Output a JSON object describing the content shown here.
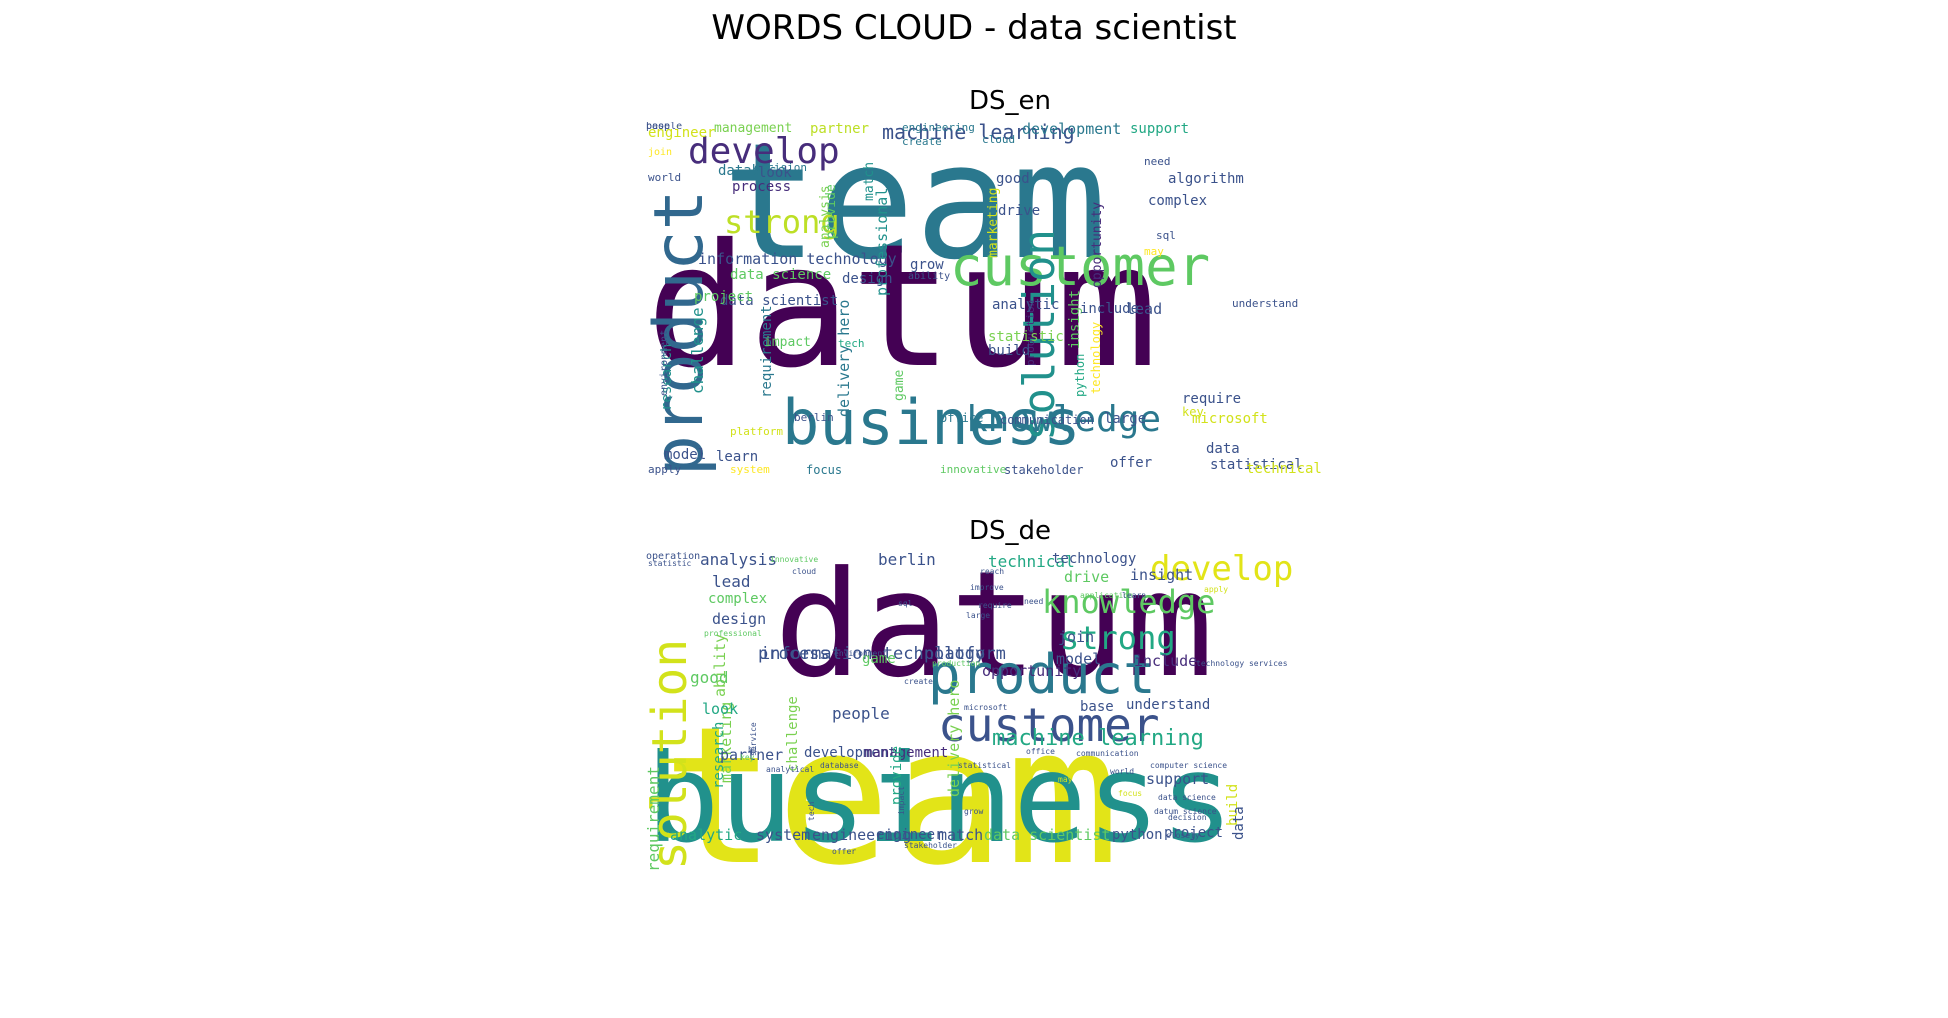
{
  "title": "WORDS CLOUD - data scientist",
  "colormap": [
    "#440154",
    "#3b528b",
    "#21918c",
    "#5ec962",
    "#fde725"
  ],
  "clouds": [
    {
      "id": "en",
      "title": "DS_en",
      "words": [
        {
          "text": "team",
          "color": "#2a788e"
        },
        {
          "text": "datum",
          "color": "#440154"
        },
        {
          "text": "business",
          "color": "#2a788e"
        },
        {
          "text": "customer",
          "color": "#5ec962"
        },
        {
          "text": "product",
          "color": "#31688e"
        },
        {
          "text": "solution",
          "color": "#21918c"
        },
        {
          "text": "knowledge",
          "color": "#2a788e"
        },
        {
          "text": "develop",
          "color": "#472d7b"
        },
        {
          "text": "strong",
          "color": "#bddf26"
        },
        {
          "text": "machine learning",
          "color": "#3b528b"
        },
        {
          "text": "information technology",
          "color": "#3b528b"
        },
        {
          "text": "professional",
          "color": "#21918c"
        },
        {
          "text": "data scientist",
          "color": "#3b528b"
        },
        {
          "text": "challenge",
          "color": "#21918c"
        },
        {
          "text": "requirement",
          "color": "#2a788e"
        },
        {
          "text": "delivery hero",
          "color": "#2a788e"
        },
        {
          "text": "research",
          "color": "#21918c"
        },
        {
          "text": "opportunity",
          "color": "#472d7b"
        },
        {
          "text": "technology",
          "color": "#fde725"
        },
        {
          "text": "marketing",
          "color": "#d2e21b"
        },
        {
          "text": "analysis",
          "color": "#7ad151"
        },
        {
          "text": "provide",
          "color": "#5ec962"
        },
        {
          "text": "match",
          "color": "#21918c"
        },
        {
          "text": "insight",
          "color": "#5ec962"
        },
        {
          "text": "production",
          "color": "#472d7b"
        },
        {
          "text": "environment",
          "color": "#3b528b"
        },
        {
          "text": "development",
          "color": "#2a788e"
        },
        {
          "text": "support",
          "color": "#22a884"
        },
        {
          "text": "management",
          "color": "#7ad151"
        },
        {
          "text": "partner",
          "color": "#bddf26"
        },
        {
          "text": "engineer",
          "color": "#d2e21b"
        },
        {
          "text": "join",
          "color": "#fde725"
        },
        {
          "text": "world",
          "color": "#3b528b"
        },
        {
          "text": "decision",
          "color": "#2a788e"
        },
        {
          "text": "database",
          "color": "#2a788e"
        },
        {
          "text": "look",
          "color": "#3b528b"
        },
        {
          "text": "process",
          "color": "#472d7b"
        },
        {
          "text": "engineering",
          "color": "#2a788e"
        },
        {
          "text": "create",
          "color": "#2a788e"
        },
        {
          "text": "cloud",
          "color": "#2a788e"
        },
        {
          "text": "need",
          "color": "#3b528b"
        },
        {
          "text": "algorithm",
          "color": "#3b528b"
        },
        {
          "text": "good",
          "color": "#3b528b"
        },
        {
          "text": "drive",
          "color": "#3b528b"
        },
        {
          "text": "complex",
          "color": "#3b528b"
        },
        {
          "text": "sql",
          "color": "#3b528b"
        },
        {
          "text": "may",
          "color": "#fde725"
        },
        {
          "text": "grow",
          "color": "#3b528b"
        },
        {
          "text": "ability",
          "color": "#3b528b"
        },
        {
          "text": "data science",
          "color": "#5ec962"
        },
        {
          "text": "design",
          "color": "#3b528b"
        },
        {
          "text": "project",
          "color": "#5ec962"
        },
        {
          "text": "analytic",
          "color": "#3b528b"
        },
        {
          "text": "include",
          "color": "#3b528b"
        },
        {
          "text": "lead",
          "color": "#3b528b"
        },
        {
          "text": "understand",
          "color": "#3b528b"
        },
        {
          "text": "impact",
          "color": "#5ec962"
        },
        {
          "text": "tech",
          "color": "#22a884"
        },
        {
          "text": "statistic",
          "color": "#7ad151"
        },
        {
          "text": "build",
          "color": "#3b528b"
        },
        {
          "text": "python",
          "color": "#22a884"
        },
        {
          "text": "game",
          "color": "#5ec962"
        },
        {
          "text": "require",
          "color": "#3b528b"
        },
        {
          "text": "key",
          "color": "#d2e21b"
        },
        {
          "text": "berlin",
          "color": "#3b528b"
        },
        {
          "text": "office",
          "color": "#2a788e"
        },
        {
          "text": "communication",
          "color": "#3b528b"
        },
        {
          "text": "large",
          "color": "#3b528b"
        },
        {
          "text": "microsoft",
          "color": "#d2e21b"
        },
        {
          "text": "platform",
          "color": "#d2e21b"
        },
        {
          "text": "model",
          "color": "#3b528b"
        },
        {
          "text": "learn",
          "color": "#3b528b"
        },
        {
          "text": "data",
          "color": "#3b528b"
        },
        {
          "text": "apply",
          "color": "#3b528b"
        },
        {
          "text": "system",
          "color": "#fde725"
        },
        {
          "text": "focus",
          "color": "#2a788e"
        },
        {
          "text": "innovative",
          "color": "#5ec962"
        },
        {
          "text": "stakeholder",
          "color": "#3b528b"
        },
        {
          "text": "offer",
          "color": "#3b528b"
        },
        {
          "text": "statistical",
          "color": "#3b528b"
        },
        {
          "text": "technical",
          "color": "#d2e21b"
        },
        {
          "text": "base",
          "color": "#3b528b"
        },
        {
          "text": "people",
          "color": "#3b528b"
        }
      ]
    },
    {
      "id": "de",
      "title": "DS_de",
      "words": [
        {
          "text": "team",
          "color": "#e2e418"
        },
        {
          "text": "datum",
          "color": "#440154"
        },
        {
          "text": "business",
          "color": "#21918c"
        },
        {
          "text": "product",
          "color": "#2a788e"
        },
        {
          "text": "customer",
          "color": "#3b528b"
        },
        {
          "text": "solution",
          "color": "#d2e21b"
        },
        {
          "text": "develop",
          "color": "#e2e418"
        },
        {
          "text": "knowledge",
          "color": "#5ec962"
        },
        {
          "text": "strong",
          "color": "#22a884"
        },
        {
          "text": "machine learning",
          "color": "#22a884"
        },
        {
          "text": "information technology",
          "color": "#3b528b"
        },
        {
          "text": "process",
          "color": "#3b528b"
        },
        {
          "text": "platform",
          "color": "#3b528b"
        },
        {
          "text": "analysis",
          "color": "#3b528b"
        },
        {
          "text": "lead",
          "color": "#3b528b"
        },
        {
          "text": "complex",
          "color": "#5ec962"
        },
        {
          "text": "design",
          "color": "#3b528b"
        },
        {
          "text": "berlin",
          "color": "#3b528b"
        },
        {
          "text": "technical",
          "color": "#22a884"
        },
        {
          "text": "technology",
          "color": "#3b528b"
        },
        {
          "text": "drive",
          "color": "#5ec962"
        },
        {
          "text": "insight",
          "color": "#3b528b"
        },
        {
          "text": "ability",
          "color": "#7ad151"
        },
        {
          "text": "join",
          "color": "#3b528b"
        },
        {
          "text": "model",
          "color": "#3b528b"
        },
        {
          "text": "include",
          "color": "#472d7b"
        },
        {
          "text": "opportunity",
          "color": "#472d7b"
        },
        {
          "text": "game",
          "color": "#5ec962"
        },
        {
          "text": "good",
          "color": "#5ec962"
        },
        {
          "text": "challenge",
          "color": "#7ad151"
        },
        {
          "text": "marketing",
          "color": "#7ad151"
        },
        {
          "text": "research",
          "color": "#22a884"
        },
        {
          "text": "requirement",
          "color": "#5ec962"
        },
        {
          "text": "look",
          "color": "#22a884"
        },
        {
          "text": "people",
          "color": "#3b528b"
        },
        {
          "text": "base",
          "color": "#3b528b"
        },
        {
          "text": "understand",
          "color": "#3b528b"
        },
        {
          "text": "partner",
          "color": "#3b528b"
        },
        {
          "text": "development",
          "color": "#3b528b"
        },
        {
          "text": "management",
          "color": "#472d7b"
        },
        {
          "text": "delivery hero",
          "color": "#7ad151"
        },
        {
          "text": "provide",
          "color": "#22a884"
        },
        {
          "text": "support",
          "color": "#3b528b"
        },
        {
          "text": "build",
          "color": "#d2e21b"
        },
        {
          "text": "data",
          "color": "#3b528b"
        },
        {
          "text": "analytic",
          "color": "#22a884"
        },
        {
          "text": "system",
          "color": "#3b528b"
        },
        {
          "text": "engineering",
          "color": "#3b528b"
        },
        {
          "text": "engineer",
          "color": "#3b528b"
        },
        {
          "text": "match",
          "color": "#3b528b"
        },
        {
          "text": "data scientist",
          "color": "#5ec962"
        },
        {
          "text": "python",
          "color": "#3b528b"
        },
        {
          "text": "project",
          "color": "#3b528b"
        },
        {
          "text": "statistic",
          "color": "#3b528b"
        },
        {
          "text": "innovative",
          "color": "#5ec962"
        },
        {
          "text": "cloud",
          "color": "#3b528b"
        },
        {
          "text": "reach",
          "color": "#3b528b"
        },
        {
          "text": "improve",
          "color": "#3b528b"
        },
        {
          "text": "sql",
          "color": "#3b528b"
        },
        {
          "text": "require",
          "color": "#3b528b"
        },
        {
          "text": "large",
          "color": "#3b528b"
        },
        {
          "text": "need",
          "color": "#3b528b"
        },
        {
          "text": "application",
          "color": "#5ec962"
        },
        {
          "text": "learn",
          "color": "#3b528b"
        },
        {
          "text": "apply",
          "color": "#d2e21b"
        },
        {
          "text": "professional",
          "color": "#5ec962"
        },
        {
          "text": "environment",
          "color": "#3b528b"
        },
        {
          "text": "production",
          "color": "#5ec962"
        },
        {
          "text": "create",
          "color": "#3b528b"
        },
        {
          "text": "microsoft",
          "color": "#3b528b"
        },
        {
          "text": "office",
          "color": "#3b528b"
        },
        {
          "text": "communication",
          "color": "#3b528b"
        },
        {
          "text": "analytical",
          "color": "#3b528b"
        },
        {
          "text": "database",
          "color": "#3b528b"
        },
        {
          "text": "statistical",
          "color": "#3b528b"
        },
        {
          "text": "may",
          "color": "#d2e21b"
        },
        {
          "text": "focus",
          "color": "#d2e21b"
        },
        {
          "text": "world",
          "color": "#3b528b"
        },
        {
          "text": "impact",
          "color": "#3b528b"
        },
        {
          "text": "grow",
          "color": "#3b528b"
        },
        {
          "text": "data science",
          "color": "#3b528b"
        },
        {
          "text": "datum science",
          "color": "#3b528b"
        },
        {
          "text": "decision",
          "color": "#3b528b"
        },
        {
          "text": "closely",
          "color": "#3b528b"
        },
        {
          "text": "offer",
          "color": "#3b528b"
        },
        {
          "text": "stakeholder",
          "color": "#3b528b"
        },
        {
          "text": "tech",
          "color": "#3b528b"
        },
        {
          "text": "key",
          "color": "#5ec962"
        },
        {
          "text": "bi",
          "color": "#3b528b"
        },
        {
          "text": "service",
          "color": "#3b528b"
        },
        {
          "text": "computer science",
          "color": "#3b528b"
        },
        {
          "text": "technology services",
          "color": "#3b528b"
        },
        {
          "text": "operation",
          "color": "#3b528b"
        }
      ]
    }
  ]
}
